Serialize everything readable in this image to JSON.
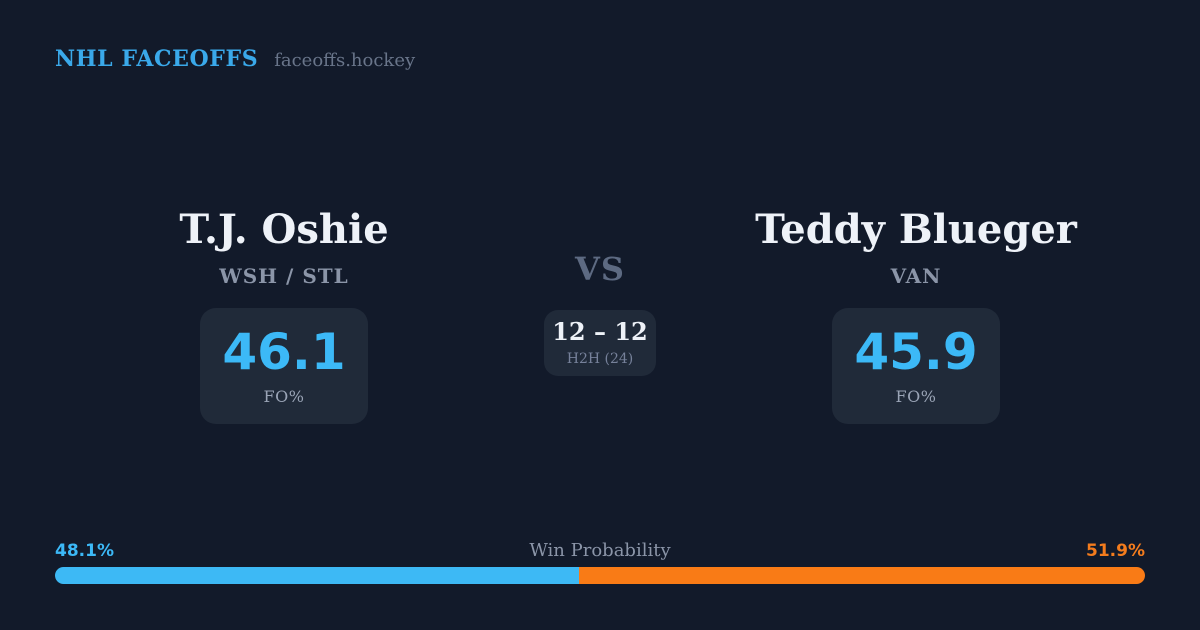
{
  "theme": {
    "background": "#121a2a",
    "card_surface": "#202a39",
    "accent_blue": "#3cb9f7",
    "accent_orange": "#f97b16",
    "text_primary": "#eef2f8",
    "text_muted": "#8b95a8",
    "text_dim": "#5d6a82"
  },
  "header": {
    "brand": "NHL FACEOFFS",
    "site": "faceoffs.hockey"
  },
  "matchup": {
    "player_left": {
      "name": "T.J. Oshie",
      "teams": "WSH / STL",
      "fo_pct": "46.1",
      "stat_label": "FO%"
    },
    "vs_label": "VS",
    "h2h": {
      "score": "12 – 12",
      "label": "H2H (24)"
    },
    "player_right": {
      "name": "Teddy Blueger",
      "teams": "VAN",
      "fo_pct": "45.9",
      "stat_label": "FO%"
    }
  },
  "win_probability": {
    "title": "Win Probability",
    "left_pct_label": "48.1%",
    "right_pct_label": "51.9%",
    "left_value": 48.1,
    "right_value": 51.9
  }
}
